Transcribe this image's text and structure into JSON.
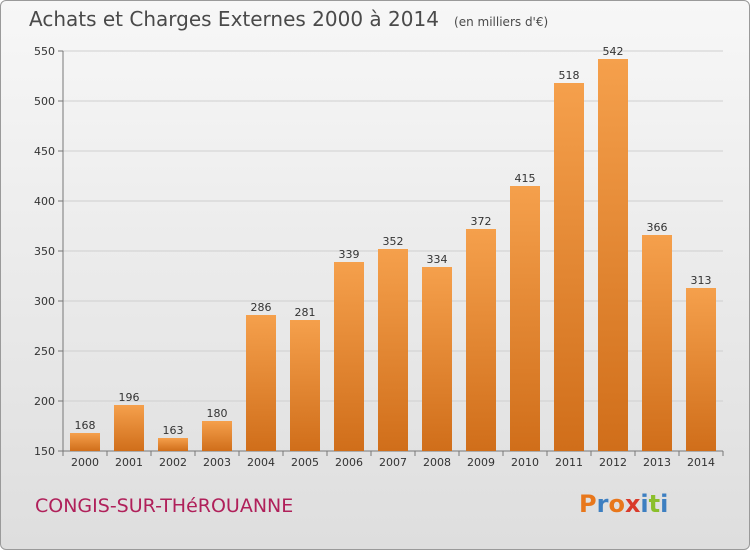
{
  "header": {
    "title": "Achats et Charges Externes 2000 à 2014",
    "subtitle": "(en milliers d'€)"
  },
  "footer": {
    "commune": "CONGIS-SUR-THéROUANNE",
    "brand": "Proxiti",
    "brand_colors": [
      "#e8771b",
      "#3d7fc1",
      "#e8771b",
      "#d93a2b",
      "#3d7fc1",
      "#8bbf2b",
      "#3d7fc1"
    ]
  },
  "chart_data": {
    "type": "bar",
    "title": "Achats et Charges Externes 2000 à 2014",
    "subtitle": "(en milliers d'€)",
    "categories": [
      "2000",
      "2001",
      "2002",
      "2003",
      "2004",
      "2005",
      "2006",
      "2007",
      "2008",
      "2009",
      "2010",
      "2011",
      "2012",
      "2013",
      "2014"
    ],
    "values": [
      168,
      196,
      163,
      180,
      286,
      281,
      339,
      352,
      334,
      372,
      415,
      518,
      542,
      366,
      313
    ],
    "ylim": [
      150,
      550
    ],
    "yticks": [
      150,
      200,
      250,
      300,
      350,
      400,
      450,
      500,
      550
    ],
    "grid": true,
    "bar_color": "#f0963c",
    "bar_color_dark": "#d9741d"
  }
}
